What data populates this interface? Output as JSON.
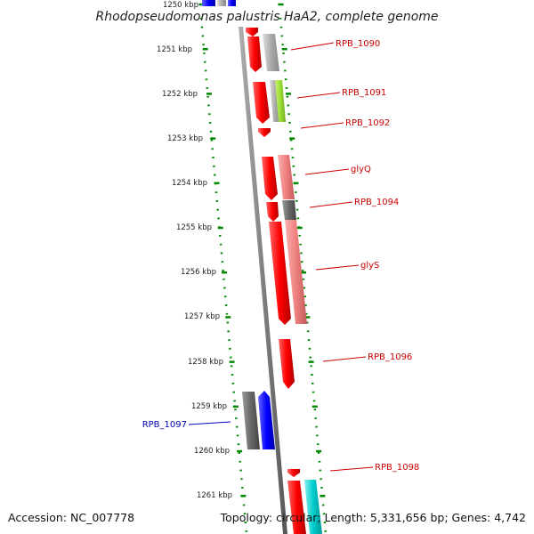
{
  "title": "Rhodopseudomonas palustris HaA2, complete genome",
  "footer": {
    "accession": "Accession: NC_007778",
    "summary": "Topology: circular; Length: 5,331,656 bp; Genes: 4,742"
  },
  "scale_labels": [
    "1250 kbp",
    "1251 kbp",
    "1252 kbp",
    "1253 kbp",
    "1254 kbp",
    "1255 kbp",
    "1256 kbp",
    "1257 kbp",
    "1258 kbp",
    "1259 kbp",
    "1260 kbp",
    "1261 kbp"
  ],
  "gene_labels": [
    "RPB_1090",
    "RPB_1091",
    "RPB_1092",
    "glyQ",
    "RPB_1094",
    "glyS",
    "RPB_1096",
    "RPB_1097",
    "RPB_1098"
  ],
  "colors": {
    "forward_label": "#cc0000",
    "reverse_label": "#0000bb",
    "scale_dots": "#008800",
    "axis": "#808080",
    "red": "#ff0000",
    "pink": "#f08080",
    "gray": "#aaaaaa",
    "dark_gray": "#666666",
    "lime": "#99dd33",
    "blue": "#0000ff",
    "cyan": "#00cccc"
  }
}
